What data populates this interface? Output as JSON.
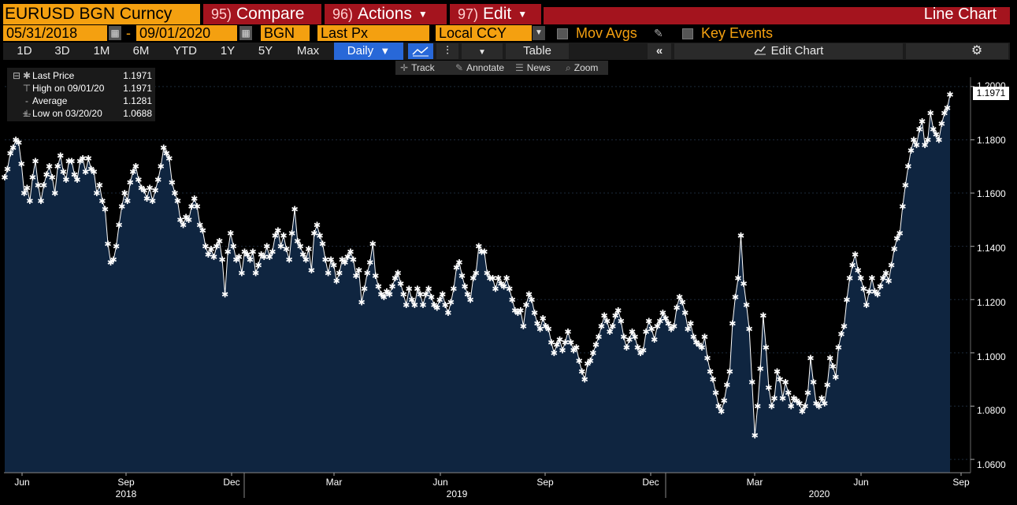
{
  "title_bar": {
    "ticker": "EURUSD BGN Curncy",
    "menus": [
      {
        "num": "95)",
        "label": "Compare"
      },
      {
        "num": "96)",
        "label": "Actions"
      },
      {
        "num": "97)",
        "label": "Edit"
      }
    ],
    "chart_type": "Line Chart"
  },
  "settings_bar": {
    "start_date": "05/31/2018",
    "end_date": "09/01/2020",
    "source": "BGN",
    "field": "Last Px",
    "currency": "Local CCY",
    "mov_avgs_label": "Mov Avgs",
    "key_events_label": "Key Events"
  },
  "period_bar": {
    "periods": [
      "1D",
      "3D",
      "1M",
      "6M",
      "YTD",
      "1Y",
      "5Y",
      "Max"
    ],
    "frequency": "Daily",
    "table_label": "Table",
    "edit_chart_label": "Edit Chart"
  },
  "annotate_bar": {
    "items": [
      "Track",
      "Annotate",
      "News",
      "Zoom"
    ]
  },
  "legend": {
    "rows": [
      {
        "label": "Last Price",
        "value": "1.1971"
      },
      {
        "label": "High on 09/01/20",
        "value": "1.1971"
      },
      {
        "label": "Average",
        "value": "1.1281"
      },
      {
        "label": "Low on 03/20/20",
        "value": "1.0688"
      }
    ]
  },
  "last_price_tag": "1.1971",
  "colors": {
    "accent_orange": "#f4a010",
    "menu_red": "#a4141e",
    "selected_blue": "#2868d8",
    "area_fill": "#0f2540",
    "line": "#ffffff"
  },
  "chart_data": {
    "type": "area",
    "title": "",
    "xlabel": "",
    "ylabel": "",
    "ylim": [
      1.055,
      1.2035
    ],
    "y_ticks": [
      "1.0600",
      "1.0800",
      "1.1000",
      "1.1200",
      "1.1400",
      "1.1600",
      "1.1800",
      "1.2000"
    ],
    "x_tick_labels": [
      "Jun",
      "Sep",
      "Dec",
      "Mar",
      "Jun",
      "Sep",
      "Dec",
      "Mar",
      "Jun",
      "Sep"
    ],
    "year_labels": [
      "2018",
      "2019",
      "2020"
    ],
    "series": [
      {
        "values": [
          [
            1.166,
            1.169,
            1.175,
            1.177,
            1.18,
            1.179,
            1.171,
            1.16,
            1.162,
            1.157,
            1.166,
            1.172,
            1.163,
            1.157,
            1.163,
            1.167,
            1.17,
            1.166,
            1.16,
            1.17,
            1.174,
            1.168,
            1.165,
            1.172,
            1.172
          ],
          [
            1.167,
            1.165,
            1.172,
            1.173,
            1.168,
            1.173,
            1.169,
            1.168,
            1.16,
            1.163,
            1.157,
            1.154,
            1.141,
            1.134,
            1.135,
            1.14,
            1.148,
            1.155,
            1.16,
            1.157,
            1.164,
            1.168,
            1.17,
            1.165,
            1.162
          ],
          [
            1.161,
            1.158,
            1.162,
            1.157,
            1.161,
            1.165,
            1.17,
            1.177,
            1.175,
            1.173,
            1.164,
            1.16,
            1.157,
            1.15,
            1.148,
            1.151,
            1.15,
            1.155,
            1.158,
            1.155,
            1.148,
            1.146,
            1.14,
            1.137,
            1.139
          ],
          [
            1.136,
            1.14,
            1.142,
            1.135,
            1.122,
            1.138,
            1.145,
            1.14,
            1.135,
            1.136,
            1.13,
            1.138,
            1.137,
            1.135,
            1.138,
            1.13,
            1.133,
            1.137,
            1.136,
            1.14,
            1.136,
            1.138,
            1.144,
            1.146,
            1.14
          ],
          [
            1.144,
            1.139,
            1.135,
            1.145,
            1.154,
            1.142,
            1.14,
            1.137,
            1.135,
            1.139,
            1.131,
            1.145,
            1.148,
            1.144,
            1.141,
            1.135,
            1.13,
            1.135,
            1.133,
            1.127,
            1.13,
            1.135,
            1.134,
            1.136,
            1.138
          ],
          [
            1.135,
            1.129,
            1.131,
            1.119,
            1.124,
            1.13,
            1.134,
            1.141,
            1.129,
            1.125,
            1.122,
            1.121,
            1.123,
            1.122,
            1.125,
            1.128,
            1.13,
            1.126,
            1.122,
            1.118,
            1.124,
            1.12,
            1.118,
            1.124,
            1.122
          ],
          [
            1.118,
            1.122,
            1.124,
            1.121,
            1.118,
            1.117,
            1.12,
            1.122,
            1.118,
            1.115,
            1.119,
            1.124,
            1.132,
            1.134,
            1.129,
            1.125,
            1.122,
            1.12,
            1.128,
            1.13,
            1.14,
            1.138,
            1.138,
            1.13,
            1.128
          ],
          [
            1.128,
            1.124,
            1.128,
            1.126,
            1.125,
            1.128,
            1.124,
            1.12,
            1.116,
            1.115,
            1.116,
            1.11,
            1.118,
            1.122,
            1.12,
            1.115,
            1.111,
            1.109,
            1.113,
            1.11,
            1.109,
            1.104,
            1.1,
            1.103,
            1.105
          ],
          [
            1.101,
            1.104,
            1.108,
            1.104,
            1.101,
            1.102,
            1.097,
            1.093,
            1.09,
            1.096,
            1.097,
            1.1,
            1.103,
            1.106,
            1.11,
            1.114,
            1.112,
            1.108,
            1.11,
            1.114,
            1.116,
            1.112,
            1.106,
            1.102,
            1.105
          ],
          [
            1.108,
            1.106,
            1.102,
            1.1,
            1.101,
            1.108,
            1.112,
            1.109,
            1.105,
            1.11,
            1.112,
            1.115,
            1.113,
            1.111,
            1.109,
            1.11,
            1.117,
            1.121,
            1.119,
            1.115,
            1.109,
            1.111,
            1.106,
            1.104,
            1.103
          ],
          [
            1.102,
            1.106,
            1.098,
            1.093,
            1.09,
            1.085,
            1.08,
            1.078,
            1.082,
            1.088,
            1.093,
            1.111,
            1.121,
            1.128,
            1.144,
            1.126,
            1.118,
            1.109,
            1.089,
            1.069,
            1.08,
            1.094,
            1.114,
            1.102,
            1.087
          ],
          [
            1.08,
            1.083,
            1.093,
            1.09,
            1.083,
            1.089,
            1.085,
            1.08,
            1.083,
            1.082,
            1.081,
            1.078,
            1.08,
            1.085,
            1.098,
            1.089,
            1.081,
            1.08,
            1.083,
            1.081,
            1.088,
            1.098,
            1.095,
            1.091,
            1.102
          ],
          [
            1.107,
            1.11,
            1.12,
            1.128,
            1.133,
            1.137,
            1.131,
            1.128,
            1.124,
            1.118,
            1.123,
            1.128,
            1.123,
            1.122,
            1.125,
            1.128,
            1.13,
            1.127,
            1.133,
            1.139,
            1.143,
            1.145,
            1.155,
            1.163,
            1.17
          ],
          [
            1.176,
            1.18,
            1.178,
            1.184,
            1.187,
            1.178,
            1.18,
            1.19,
            1.184,
            1.182,
            1.18,
            1.186,
            1.19,
            1.192,
            1.197
          ]
        ]
      }
    ]
  }
}
